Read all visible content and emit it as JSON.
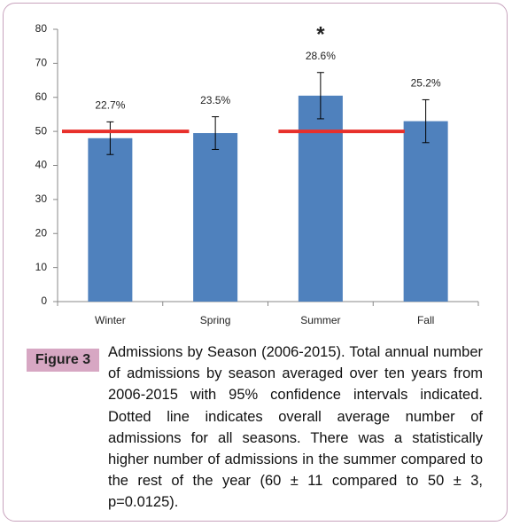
{
  "chart_data": {
    "type": "bar",
    "categories": [
      "Winter",
      "Spring",
      "Summer",
      "Fall"
    ],
    "values": [
      48,
      49.5,
      60.5,
      53
    ],
    "errors": [
      4.8,
      4.8,
      6.8,
      6.3
    ],
    "color": "#4f81bd",
    "annotations": [
      "22.7%",
      "23.5%",
      "28.6%",
      "25.2%"
    ],
    "significance_mark": {
      "category": 2,
      "label": "*"
    },
    "reference_value": 50,
    "reference_color": "#e8302b",
    "ylim": [
      0,
      80
    ],
    "yticks": [
      0,
      10,
      20,
      30,
      40,
      50,
      60,
      70,
      80
    ],
    "grid": false
  },
  "caption": {
    "label": "Figure 3",
    "text": "Admissions by Season (2006-2015). Total annual number of admissions by season averaged over ten years from 2006-2015 with 95% confidence intervals indicated. Dotted line indicates overall average number of admissions for all seasons. There was a statistically higher number of admissions in the summer compared to the rest of the year (60 ± 11 compared to 50 ± 3, p=0.0125)."
  }
}
